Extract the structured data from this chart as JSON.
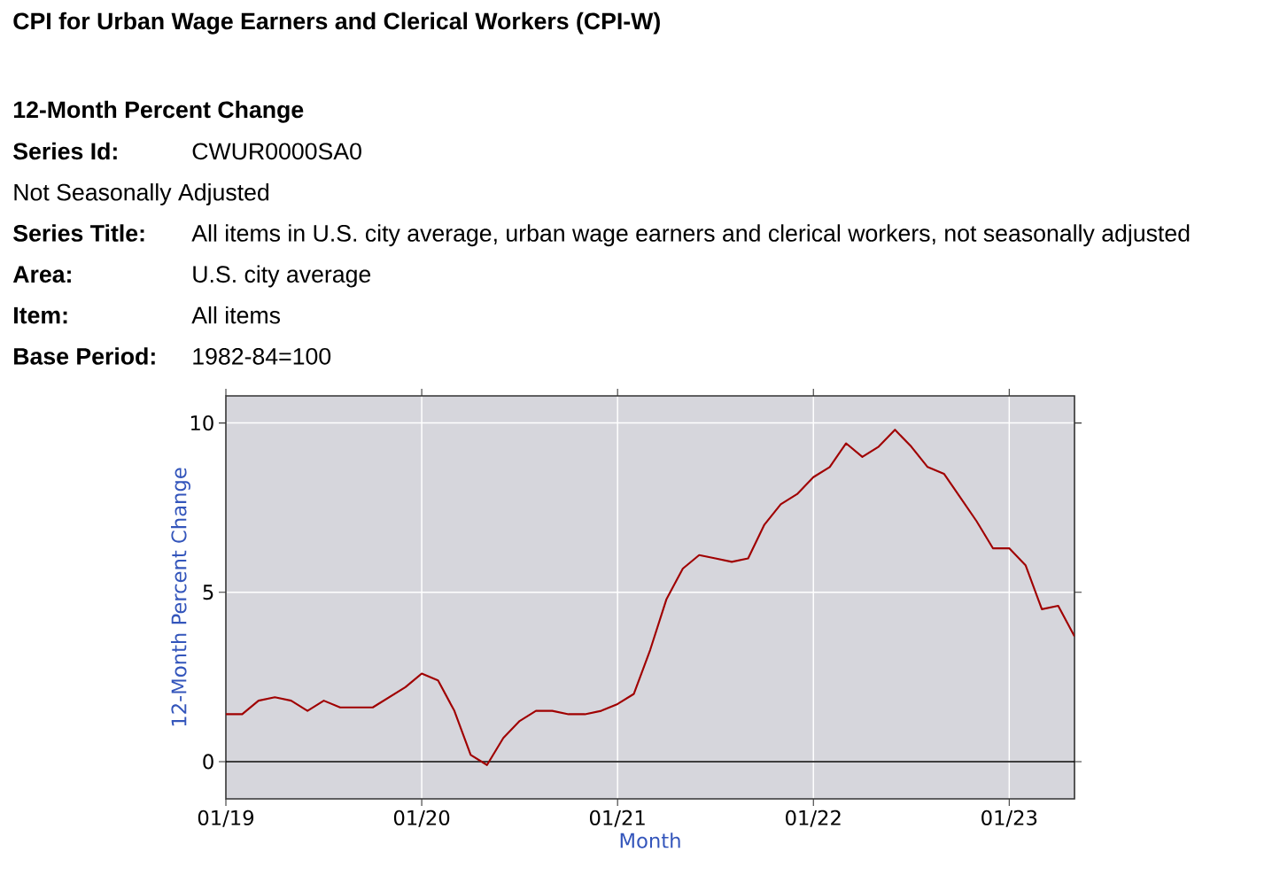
{
  "chart_data": {
    "type": "line",
    "title": "CPI for Urban Wage Earners and Clerical Workers (CPI-W)",
    "subtitle": "12-Month Percent Change",
    "annotations": [
      "Series Id:",
      "CWUR0000SA0",
      "Not Seasonally Adjusted",
      "Series Title:",
      "All items in U.S. city average, urban wage earners and clerical workers, not seasonally adjusted",
      "Area:",
      "U.S. city average",
      "Item:",
      "All items",
      "Base Period:",
      "1982-84=100"
    ],
    "xlabel": "Month",
    "ylabel": "12-Month Percent Change",
    "x": [
      "2019-01",
      "2019-02",
      "2019-03",
      "2019-04",
      "2019-05",
      "2019-06",
      "2019-07",
      "2019-08",
      "2019-09",
      "2019-10",
      "2019-11",
      "2019-12",
      "2020-01",
      "2020-02",
      "2020-03",
      "2020-04",
      "2020-05",
      "2020-06",
      "2020-07",
      "2020-08",
      "2020-09",
      "2020-10",
      "2020-11",
      "2020-12",
      "2021-01",
      "2021-02",
      "2021-03",
      "2021-04",
      "2021-05",
      "2021-06",
      "2021-07",
      "2021-08",
      "2021-09",
      "2021-10",
      "2021-11",
      "2021-12",
      "2022-01",
      "2022-02",
      "2022-03",
      "2022-04",
      "2022-05",
      "2022-06",
      "2022-07",
      "2022-08",
      "2022-09",
      "2022-10",
      "2022-11",
      "2022-12",
      "2023-01",
      "2023-02",
      "2023-03",
      "2023-04",
      "2023-05"
    ],
    "series": [
      {
        "color": "#a00000",
        "values": [
          1.4,
          1.4,
          1.8,
          1.9,
          1.8,
          1.5,
          1.8,
          1.6,
          1.6,
          1.6,
          1.9,
          2.2,
          2.6,
          2.4,
          1.5,
          0.2,
          -0.1,
          0.7,
          1.2,
          1.5,
          1.5,
          1.4,
          1.4,
          1.5,
          1.7,
          2.0,
          3.3,
          4.8,
          5.7,
          6.1,
          6.0,
          5.9,
          6.0,
          7.0,
          7.6,
          7.9,
          8.4,
          8.7,
          9.4,
          9.0,
          9.3,
          9.8,
          9.3,
          8.7,
          8.5,
          7.8,
          7.1,
          6.3,
          6.3,
          5.8,
          4.5,
          4.6,
          3.7
        ]
      }
    ],
    "xlim": [
      "2019-01",
      "2023-05"
    ],
    "ylim": [
      -1.1,
      10.8
    ],
    "xticks": [
      {
        "value": "2019-01",
        "label": "01/19"
      },
      {
        "value": "2020-01",
        "label": "01/20"
      },
      {
        "value": "2021-01",
        "label": "01/21"
      },
      {
        "value": "2022-01",
        "label": "01/22"
      },
      {
        "value": "2023-01",
        "label": "01/23"
      }
    ],
    "yticks": [
      0,
      5,
      10
    ],
    "grid": true,
    "ref_lines": [
      {
        "axis": "y",
        "value": 0,
        "color": "#000000"
      }
    ]
  }
}
